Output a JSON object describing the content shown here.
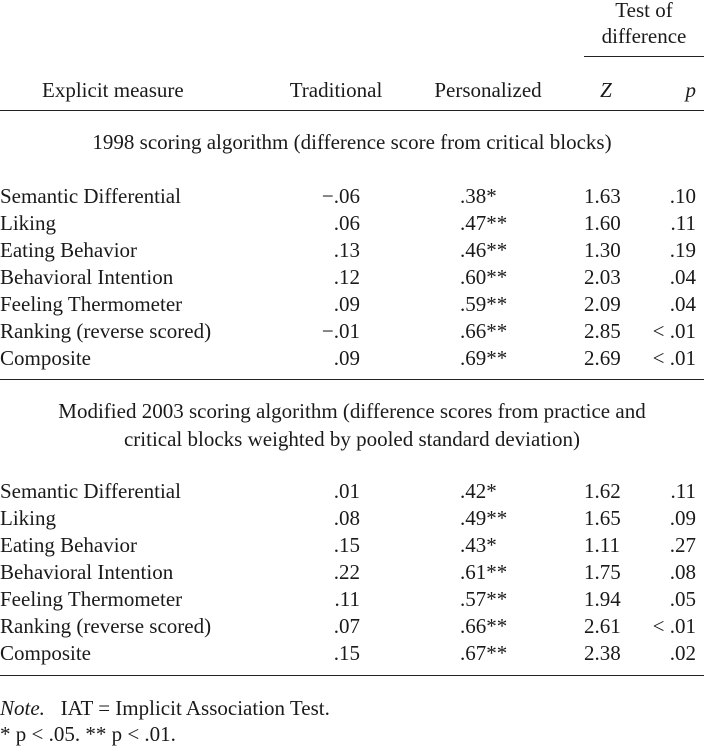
{
  "header": {
    "group_line1": "Test of",
    "group_line2": "difference",
    "col_measure": "Explicit measure",
    "col_traditional": "Traditional",
    "col_personalized": "Personalized",
    "col_z": "Z",
    "col_p": "p"
  },
  "sections": [
    {
      "title_lines": [
        "1998 scoring algorithm (difference score from critical blocks)"
      ],
      "rows": [
        {
          "measure": "Semantic Differential",
          "traditional": "−.06",
          "personalized": ".38*",
          "z": "1.63",
          "p": ".10"
        },
        {
          "measure": "Liking",
          "traditional": ".06",
          "personalized": ".47**",
          "z": "1.60",
          "p": ".11"
        },
        {
          "measure": "Eating Behavior",
          "traditional": ".13",
          "personalized": ".46**",
          "z": "1.30",
          "p": ".19"
        },
        {
          "measure": "Behavioral Intention",
          "traditional": ".12",
          "personalized": ".60**",
          "z": "2.03",
          "p": ".04"
        },
        {
          "measure": "Feeling Thermometer",
          "traditional": ".09",
          "personalized": ".59**",
          "z": "2.09",
          "p": ".04"
        },
        {
          "measure": "Ranking (reverse scored)",
          "traditional": "−.01",
          "personalized": ".66**",
          "z": "2.85",
          "p": "< .01"
        },
        {
          "measure": "Composite",
          "traditional": ".09",
          "personalized": ".69**",
          "z": "2.69",
          "p": "< .01"
        }
      ]
    },
    {
      "title_lines": [
        "Modified 2003 scoring algorithm (difference scores from practice and",
        "critical blocks weighted by pooled standard deviation)"
      ],
      "rows": [
        {
          "measure": "Semantic Differential",
          "traditional": ".01",
          "personalized": ".42*",
          "z": "1.62",
          "p": ".11"
        },
        {
          "measure": "Liking",
          "traditional": ".08",
          "personalized": ".49**",
          "z": "1.65",
          "p": ".09"
        },
        {
          "measure": "Eating Behavior",
          "traditional": ".15",
          "personalized": ".43*",
          "z": "1.11",
          "p": ".27"
        },
        {
          "measure": "Behavioral Intention",
          "traditional": ".22",
          "personalized": ".61**",
          "z": "1.75",
          "p": ".08"
        },
        {
          "measure": "Feeling Thermometer",
          "traditional": ".11",
          "personalized": ".57**",
          "z": "1.94",
          "p": ".05"
        },
        {
          "measure": "Ranking (reverse scored)",
          "traditional": ".07",
          "personalized": ".66**",
          "z": "2.61",
          "p": "< .01"
        },
        {
          "measure": "Composite",
          "traditional": ".15",
          "personalized": ".67**",
          "z": "2.38",
          "p": ".02"
        }
      ]
    }
  ],
  "notes": {
    "note_label": "Note.",
    "note_text": "IAT = Implicit Association Test.",
    "sig_line": "* p < .05.   ** p < .01."
  }
}
